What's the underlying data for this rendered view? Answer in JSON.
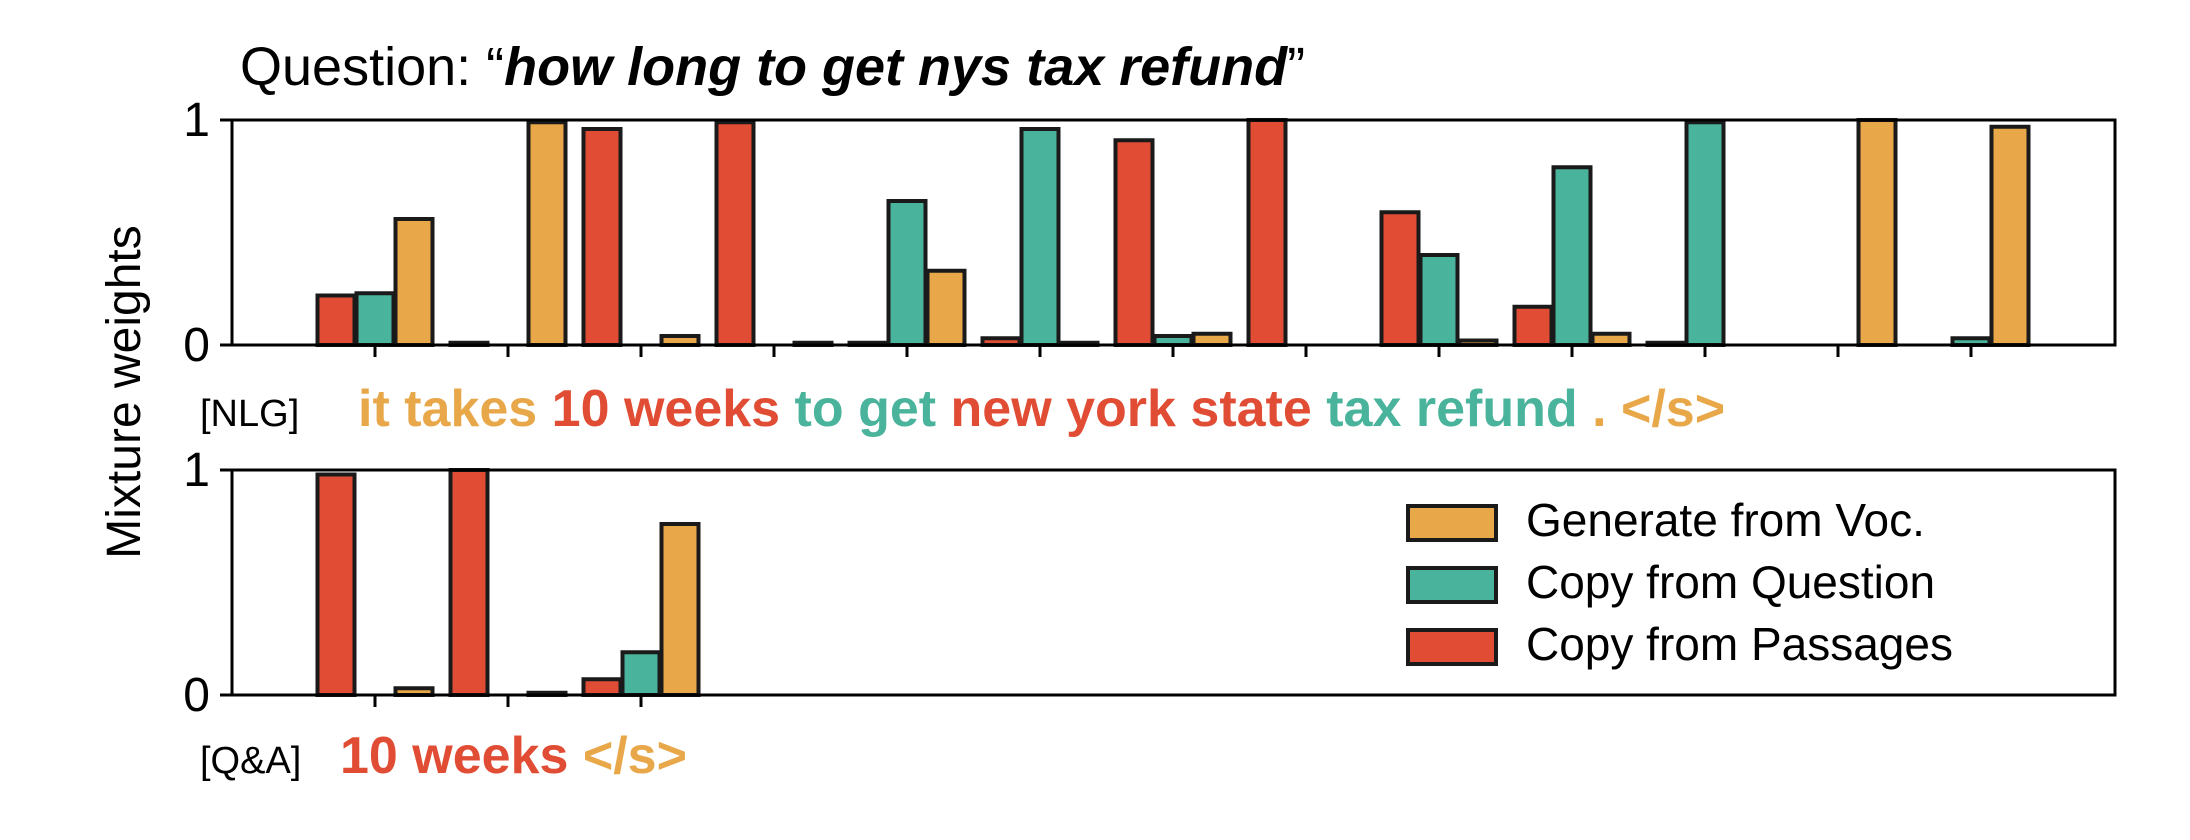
{
  "title": {
    "prefix": "Question: “",
    "question": "how long to get nys tax refund",
    "suffix": "”"
  },
  "colors": {
    "gen": "#E8A84A",
    "copy_q": "#4AB39B",
    "copy_p": "#E14D34",
    "edge": "#1a1a1a"
  },
  "chart_data": [
    {
      "type": "bar",
      "name": "NLG",
      "row_label": "[NLG]",
      "ylabel": "Mixture weights",
      "ylim": [
        0,
        1
      ],
      "yticks": [
        0,
        1
      ],
      "tokens": [
        "it",
        "takes",
        "10",
        "weeks",
        "to",
        "get",
        "new",
        "york",
        "state",
        "tax",
        "refund",
        ".",
        "</s>"
      ],
      "token_sources": [
        "gen",
        "gen",
        "copy_p",
        "copy_p",
        "copy_q",
        "copy_q",
        "copy_p",
        "copy_p",
        "copy_p",
        "copy_q",
        "copy_q",
        "gen",
        "gen"
      ],
      "series": [
        {
          "key": "copy_p",
          "values": [
            0.22,
            0.01,
            0.96,
            0.99,
            0.01,
            0.03,
            0.91,
            1.0,
            0.59,
            0.17,
            0.01,
            0.0,
            0.0
          ]
        },
        {
          "key": "copy_q",
          "values": [
            0.23,
            0.0,
            0.0,
            0.0,
            0.64,
            0.96,
            0.04,
            0.0,
            0.4,
            0.79,
            0.99,
            0.0,
            0.03
          ]
        },
        {
          "key": "gen",
          "values": [
            0.56,
            0.99,
            0.04,
            0.01,
            0.33,
            0.01,
            0.05,
            0.0,
            0.02,
            0.05,
            0.0,
            1.0,
            0.97
          ]
        }
      ]
    },
    {
      "type": "bar",
      "name": "Q&A",
      "row_label": "[Q&A]",
      "ylim": [
        0,
        1
      ],
      "yticks": [
        0,
        1
      ],
      "tokens": [
        "10",
        "weeks",
        "</s>"
      ],
      "token_sources": [
        "copy_p",
        "copy_p",
        "gen"
      ],
      "series": [
        {
          "key": "copy_p",
          "values": [
            0.98,
            1.0,
            0.07
          ]
        },
        {
          "key": "copy_q",
          "values": [
            0.0,
            0.0,
            0.19
          ]
        },
        {
          "key": "gen",
          "values": [
            0.03,
            0.01,
            0.76
          ]
        }
      ],
      "legend": {
        "position": "right",
        "entries": [
          {
            "key": "gen",
            "label": "Generate from Voc."
          },
          {
            "key": "copy_q",
            "label": "Copy from Question"
          },
          {
            "key": "copy_p",
            "label": "Copy from Passages"
          }
        ]
      }
    }
  ]
}
